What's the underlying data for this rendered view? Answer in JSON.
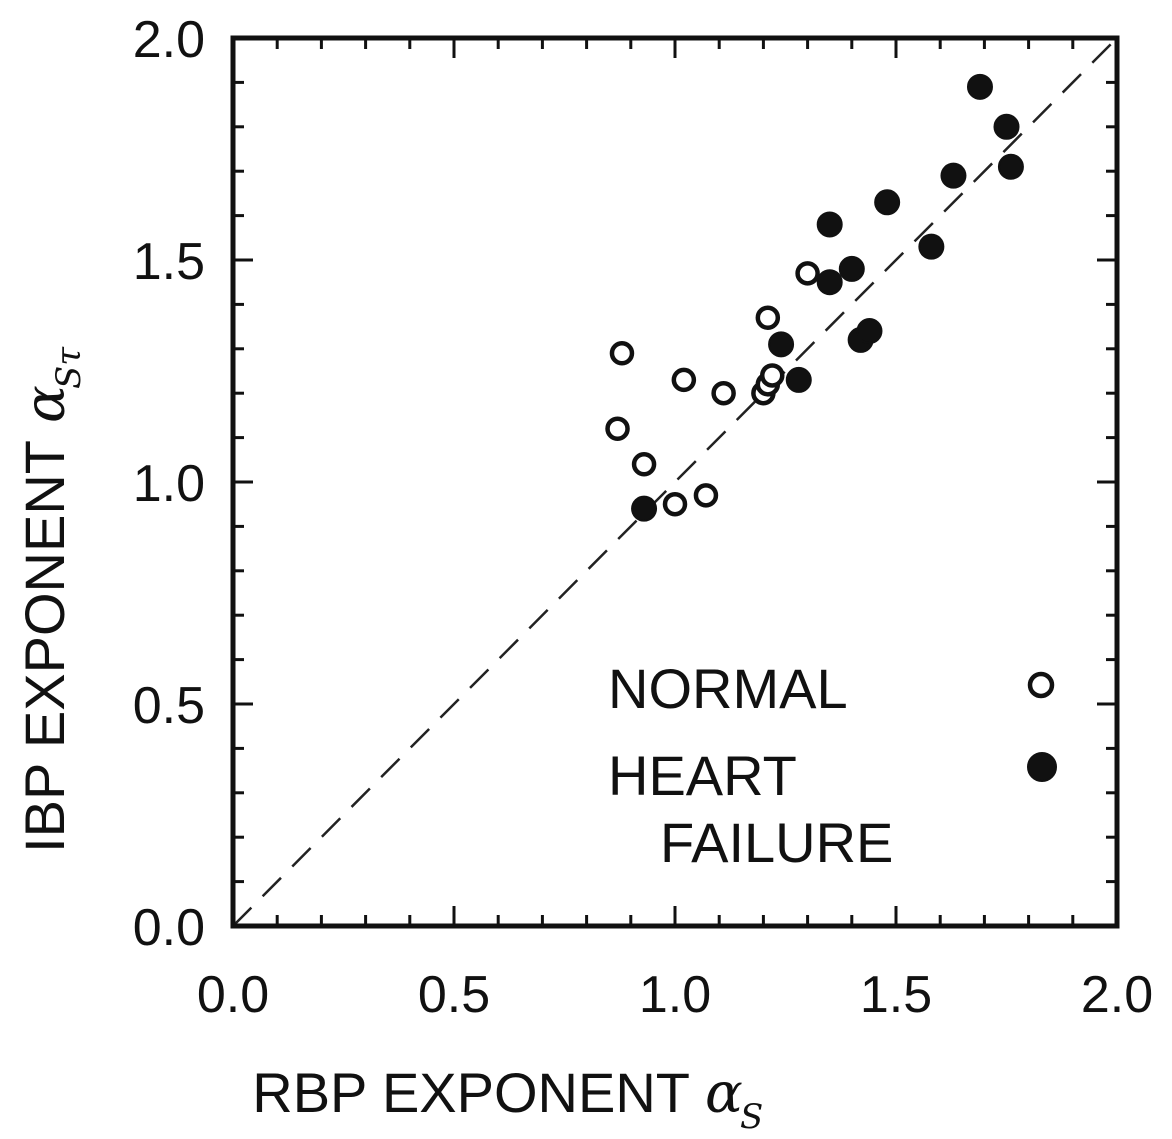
{
  "chart_data": {
    "type": "scatter",
    "xlabel": "RBP EXPONENT",
    "xlabel_symbol": "α",
    "xlabel_subscript": "S",
    "ylabel": "IBP EXPONENT",
    "ylabel_symbol": "α",
    "ylabel_subscript": "Sτ",
    "xlim": [
      0.0,
      2.0
    ],
    "ylim": [
      0.0,
      2.0
    ],
    "x_ticks": [
      "0.0",
      "0.5",
      "1.0",
      "1.5",
      "2.0"
    ],
    "y_ticks": [
      "0.0",
      "0.5",
      "1.0",
      "1.5",
      "2.0"
    ],
    "tick_values": [
      0.0,
      0.5,
      1.0,
      1.5,
      2.0
    ],
    "grid": false,
    "reference_line": {
      "style": "dashed",
      "from": [
        0,
        0
      ],
      "to": [
        2,
        2
      ]
    },
    "legend_position": "bottom-right",
    "series": [
      {
        "name": "NORMAL",
        "marker": "open-circle",
        "color": "#111111",
        "points": [
          [
            0.88,
            1.29
          ],
          [
            0.87,
            1.12
          ],
          [
            0.93,
            1.04
          ],
          [
            1.02,
            1.23
          ],
          [
            1.11,
            1.2
          ],
          [
            1.2,
            1.2
          ],
          [
            1.21,
            1.22
          ],
          [
            1.22,
            1.24
          ],
          [
            1.21,
            1.37
          ],
          [
            1.3,
            1.47
          ],
          [
            1.0,
            0.95
          ],
          [
            1.07,
            0.97
          ]
        ]
      },
      {
        "name": "HEART\nFAILURE",
        "name_lines": [
          "HEART",
          "FAILURE"
        ],
        "marker": "filled-circle",
        "color": "#111111",
        "points": [
          [
            0.93,
            0.94
          ],
          [
            1.24,
            1.31
          ],
          [
            1.28,
            1.23
          ],
          [
            1.35,
            1.45
          ],
          [
            1.35,
            1.58
          ],
          [
            1.4,
            1.48
          ],
          [
            1.42,
            1.32
          ],
          [
            1.44,
            1.34
          ],
          [
            1.48,
            1.63
          ],
          [
            1.58,
            1.53
          ],
          [
            1.63,
            1.69
          ],
          [
            1.69,
            1.89
          ],
          [
            1.75,
            1.8
          ],
          [
            1.76,
            1.71
          ]
        ]
      }
    ]
  }
}
